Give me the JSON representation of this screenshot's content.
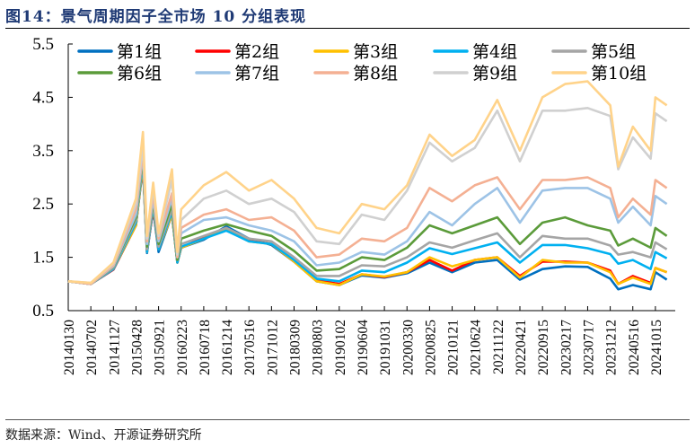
{
  "title": "图14：景气周期因子全市场 10 分组表现",
  "source": "数据来源：Wind、开源证券研究所",
  "chart_data": {
    "type": "line",
    "title": "",
    "xlabel": "",
    "ylabel": "",
    "ylim": [
      0.5,
      5.5
    ],
    "yticks": [
      "0.5",
      "1.5",
      "2.5",
      "3.5",
      "4.5",
      "5.5"
    ],
    "xticks": [
      "20140130",
      "20140702",
      "20141127",
      "20150428",
      "20150921",
      "20160223",
      "20160718",
      "20161214",
      "20170516",
      "20171012",
      "20180309",
      "20180803",
      "20190102",
      "20190604",
      "20191031",
      "20200330",
      "20200825",
      "20210121",
      "20210624",
      "20211122",
      "20220421",
      "20220915",
      "20230217",
      "20230717",
      "20231212",
      "20240516",
      "20241015"
    ],
    "grid": false,
    "legend_position": "top",
    "x": [
      "2014-01-30",
      "2014-07-02",
      "2014-11-27",
      "2015-04-28",
      "2015-06-12",
      "2015-07-08",
      "2015-08-17",
      "2015-09-21",
      "2015-12-22",
      "2016-01-28",
      "2016-02-23",
      "2016-07-18",
      "2016-12-14",
      "2017-05-16",
      "2017-10-12",
      "2018-03-09",
      "2018-08-03",
      "2019-01-02",
      "2019-06-04",
      "2019-10-31",
      "2020-03-30",
      "2020-08-25",
      "2021-01-21",
      "2021-06-24",
      "2021-11-22",
      "2022-04-21",
      "2022-09-15",
      "2023-02-17",
      "2023-07-17",
      "2023-12-12",
      "2024-02-05",
      "2024-05-16",
      "2024-09-13",
      "2024-10-15",
      "2024-12-31"
    ],
    "series": [
      {
        "name": "第1组",
        "color": "#0070c0",
        "values": [
          1.05,
          1.0,
          1.27,
          2.1,
          3.2,
          1.58,
          2.4,
          1.6,
          2.3,
          1.4,
          1.68,
          1.83,
          2.08,
          1.85,
          1.73,
          1.42,
          1.05,
          0.98,
          1.16,
          1.12,
          1.2,
          1.4,
          1.22,
          1.4,
          1.45,
          1.08,
          1.28,
          1.33,
          1.32,
          1.1,
          0.9,
          0.98,
          0.9,
          1.22,
          1.08
        ]
      },
      {
        "name": "第2组",
        "color": "#ff0000",
        "values": [
          1.05,
          1.0,
          1.27,
          2.1,
          3.25,
          1.6,
          2.4,
          1.65,
          2.3,
          1.4,
          1.68,
          1.88,
          2.05,
          1.82,
          1.75,
          1.42,
          1.07,
          1.0,
          1.18,
          1.13,
          1.22,
          1.45,
          1.25,
          1.45,
          1.5,
          1.15,
          1.42,
          1.42,
          1.4,
          1.25,
          1.0,
          1.15,
          1.02,
          1.3,
          1.22
        ]
      },
      {
        "name": "第3组",
        "color": "#ffc000",
        "values": [
          1.05,
          1.0,
          1.28,
          2.1,
          3.25,
          1.6,
          2.45,
          1.65,
          2.3,
          1.4,
          1.68,
          1.85,
          2.02,
          1.8,
          1.75,
          1.42,
          1.05,
          0.98,
          1.18,
          1.14,
          1.22,
          1.5,
          1.33,
          1.45,
          1.5,
          1.12,
          1.45,
          1.4,
          1.4,
          1.22,
          1.0,
          1.12,
          1.0,
          1.3,
          1.22
        ]
      },
      {
        "name": "第4组",
        "color": "#00b0f0",
        "values": [
          1.05,
          1.0,
          1.28,
          2.15,
          3.3,
          1.6,
          2.45,
          1.65,
          2.35,
          1.4,
          1.7,
          1.85,
          2.0,
          1.8,
          1.75,
          1.45,
          1.1,
          1.05,
          1.25,
          1.22,
          1.4,
          1.67,
          1.56,
          1.67,
          1.78,
          1.4,
          1.73,
          1.73,
          1.67,
          1.56,
          1.38,
          1.45,
          1.28,
          1.6,
          1.48
        ]
      },
      {
        "name": "第5组",
        "color": "#a5a5a5",
        "values": [
          1.05,
          1.0,
          1.3,
          2.2,
          3.35,
          1.65,
          2.5,
          1.7,
          2.4,
          1.45,
          1.75,
          1.9,
          2.05,
          1.85,
          1.8,
          1.5,
          1.15,
          1.15,
          1.35,
          1.33,
          1.5,
          1.78,
          1.68,
          1.82,
          1.95,
          1.5,
          1.9,
          1.85,
          1.85,
          1.72,
          1.55,
          1.6,
          1.5,
          1.78,
          1.65
        ]
      },
      {
        "name": "第6组",
        "color": "#5b9b3a",
        "values": [
          1.05,
          1.0,
          1.32,
          2.25,
          3.4,
          1.7,
          2.55,
          1.75,
          2.5,
          1.45,
          1.85,
          2.0,
          2.12,
          2.0,
          1.9,
          1.62,
          1.25,
          1.28,
          1.5,
          1.45,
          1.68,
          2.1,
          1.95,
          2.1,
          2.25,
          1.75,
          2.15,
          2.25,
          2.1,
          2.0,
          1.72,
          1.85,
          1.68,
          2.05,
          1.9
        ]
      },
      {
        "name": "第7组",
        "color": "#9dc3e6",
        "values": [
          1.05,
          1.0,
          1.33,
          2.3,
          3.45,
          1.75,
          2.6,
          1.8,
          2.6,
          1.5,
          1.95,
          2.2,
          2.25,
          2.1,
          2.0,
          1.8,
          1.35,
          1.4,
          1.6,
          1.55,
          1.8,
          2.35,
          2.1,
          2.5,
          2.8,
          2.15,
          2.75,
          2.8,
          2.8,
          2.6,
          2.15,
          2.45,
          2.1,
          2.65,
          2.5
        ]
      },
      {
        "name": "第8组",
        "color": "#f4b093",
        "values": [
          1.05,
          1.0,
          1.35,
          2.4,
          3.5,
          1.8,
          2.7,
          1.85,
          2.7,
          1.5,
          2.05,
          2.3,
          2.4,
          2.2,
          2.25,
          2.0,
          1.5,
          1.55,
          1.85,
          1.8,
          2.05,
          2.8,
          2.55,
          2.85,
          3.0,
          2.4,
          2.95,
          2.95,
          3.0,
          2.8,
          2.25,
          2.6,
          2.3,
          2.95,
          2.8
        ]
      },
      {
        "name": "第9组",
        "color": "#d0d0d0",
        "values": [
          1.05,
          1.02,
          1.38,
          2.5,
          3.6,
          1.85,
          2.8,
          1.9,
          2.95,
          1.55,
          2.2,
          2.6,
          2.75,
          2.5,
          2.6,
          2.35,
          1.8,
          1.75,
          2.3,
          2.2,
          2.75,
          3.65,
          3.3,
          3.55,
          4.25,
          3.3,
          4.25,
          4.25,
          4.3,
          4.15,
          3.15,
          3.75,
          3.35,
          4.2,
          4.05
        ]
      },
      {
        "name": "第10组",
        "color": "#ffd38a",
        "values": [
          1.05,
          1.02,
          1.4,
          2.6,
          3.85,
          1.9,
          2.9,
          1.95,
          3.15,
          1.6,
          2.4,
          2.85,
          3.1,
          2.75,
          2.95,
          2.6,
          2.05,
          1.95,
          2.5,
          2.4,
          2.85,
          3.8,
          3.4,
          3.7,
          4.45,
          3.5,
          4.5,
          4.75,
          4.8,
          4.35,
          3.2,
          3.95,
          3.5,
          4.5,
          4.35
        ]
      }
    ]
  }
}
